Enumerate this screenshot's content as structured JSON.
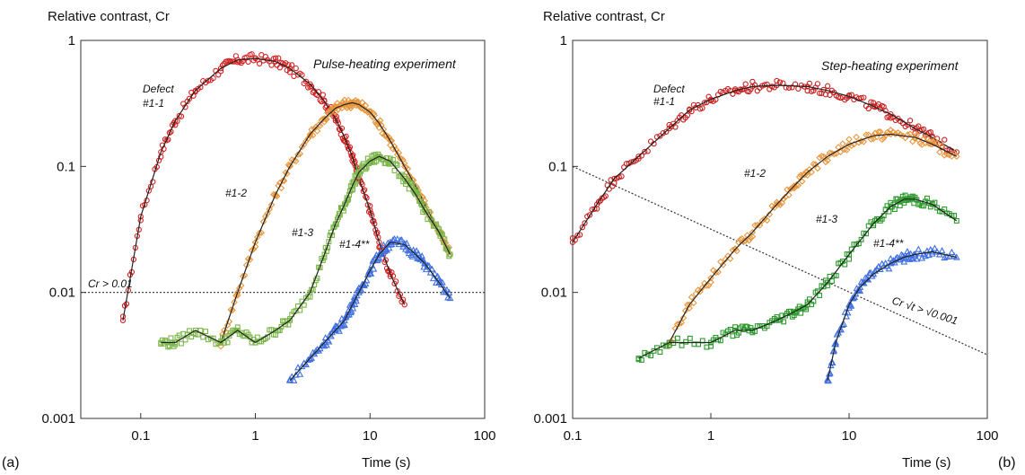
{
  "chart_data": [
    {
      "type": "scatter",
      "panel_label": "(a)",
      "title": "Pulse-heating experiment",
      "ylabel": "Relative contrast, Cr",
      "xlabel": "Time   (s)",
      "xscale": "log",
      "yscale": "log",
      "xlim": [
        0.03,
        100
      ],
      "ylim": [
        0.001,
        1
      ],
      "x_ticks": [
        "0.1",
        "1",
        "10",
        "100"
      ],
      "y_ticks": [
        "0.001",
        "0.01",
        "0.1",
        "1"
      ],
      "threshold": {
        "label": "Cr > 0.01",
        "value": 0.01
      },
      "series": [
        {
          "name": "Defect #1-1",
          "color": "#d42020",
          "marker": "circle",
          "x": [
            0.07,
            0.1,
            0.15,
            0.2,
            0.3,
            0.5,
            0.7,
            1,
            1.5,
            2,
            3,
            4,
            5,
            6,
            7,
            8,
            10,
            12,
            15,
            20
          ],
          "y": [
            0.006,
            0.04,
            0.13,
            0.23,
            0.4,
            0.6,
            0.7,
            0.72,
            0.68,
            0.6,
            0.45,
            0.33,
            0.24,
            0.17,
            0.12,
            0.08,
            0.045,
            0.025,
            0.014,
            0.008
          ]
        },
        {
          "name": "#1-2",
          "color": "#e8963c",
          "marker": "diamond",
          "x": [
            0.5,
            0.7,
            1,
            1.5,
            2,
            3,
            4,
            5,
            6,
            7,
            8,
            10,
            12,
            15,
            20,
            25,
            30,
            40,
            50
          ],
          "y": [
            0.004,
            0.01,
            0.025,
            0.06,
            0.1,
            0.18,
            0.24,
            0.29,
            0.31,
            0.32,
            0.31,
            0.27,
            0.22,
            0.16,
            0.1,
            0.07,
            0.05,
            0.03,
            0.02
          ]
        },
        {
          "name": "#1-3",
          "color": "#7ab648",
          "marker": "square",
          "x": [
            0.15,
            0.2,
            0.3,
            0.5,
            0.7,
            1,
            1.5,
            2,
            3,
            4,
            5,
            6,
            7,
            8,
            10,
            12,
            15,
            20,
            25,
            30,
            40,
            50
          ],
          "y": [
            0.004,
            0.004,
            0.005,
            0.004,
            0.005,
            0.004,
            0.005,
            0.006,
            0.01,
            0.02,
            0.035,
            0.05,
            0.07,
            0.09,
            0.11,
            0.12,
            0.11,
            0.08,
            0.06,
            0.045,
            0.03,
            0.02
          ]
        },
        {
          "name": "#1-4**",
          "color": "#3f6fe0",
          "marker": "triangle",
          "x": [
            2,
            3,
            4,
            5,
            6,
            7,
            8,
            10,
            12,
            15,
            20,
            25,
            30,
            40,
            50
          ],
          "y": [
            0.002,
            0.003,
            0.004,
            0.005,
            0.006,
            0.008,
            0.01,
            0.015,
            0.02,
            0.025,
            0.024,
            0.02,
            0.017,
            0.012,
            0.009
          ]
        }
      ]
    },
    {
      "type": "scatter",
      "panel_label": "(b)",
      "title": "Step-heating experiment",
      "ylabel": "Relative contrast, Cr",
      "xlabel": "Time   (s)",
      "xscale": "log",
      "yscale": "log",
      "xlim": [
        0.1,
        100
      ],
      "ylim": [
        0.001,
        1
      ],
      "x_ticks": [
        "0.1",
        "1",
        "10",
        "100"
      ],
      "y_ticks": [
        "0.001",
        "0.01",
        "0.1",
        "1"
      ],
      "threshold": {
        "label": "Cr √t > √0.001",
        "from": [
          0.1,
          0.1
        ],
        "to": [
          100,
          0.0032
        ]
      },
      "series": [
        {
          "name": "Defect #1-1",
          "color": "#c81e1e",
          "marker": "circle",
          "x": [
            0.1,
            0.15,
            0.2,
            0.3,
            0.5,
            0.7,
            1,
            1.5,
            2,
            3,
            5,
            7,
            10,
            15,
            20,
            30,
            40,
            60
          ],
          "y": [
            0.025,
            0.05,
            0.08,
            0.12,
            0.2,
            0.28,
            0.34,
            0.4,
            0.43,
            0.44,
            0.43,
            0.4,
            0.36,
            0.3,
            0.26,
            0.2,
            0.17,
            0.13
          ]
        },
        {
          "name": "#1-2",
          "color": "#e8963c",
          "marker": "diamond",
          "x": [
            0.5,
            0.7,
            1,
            1.5,
            2,
            3,
            4,
            5,
            7,
            10,
            15,
            20,
            30,
            40,
            60
          ],
          "y": [
            0.004,
            0.008,
            0.013,
            0.022,
            0.03,
            0.05,
            0.07,
            0.09,
            0.12,
            0.15,
            0.175,
            0.18,
            0.17,
            0.15,
            0.12
          ]
        },
        {
          "name": "#1-3",
          "color": "#2e9a2e",
          "marker": "square",
          "x": [
            0.3,
            0.5,
            1,
            1.5,
            2,
            3,
            4,
            5,
            7,
            10,
            15,
            20,
            25,
            30,
            40,
            60
          ],
          "y": [
            0.003,
            0.004,
            0.004,
            0.005,
            0.005,
            0.006,
            0.007,
            0.008,
            0.012,
            0.02,
            0.035,
            0.048,
            0.055,
            0.055,
            0.05,
            0.037
          ]
        },
        {
          "name": "#1-4**",
          "color": "#3f6fe0",
          "marker": "triangle",
          "x": [
            7,
            8,
            10,
            12,
            15,
            20,
            25,
            30,
            40,
            60
          ],
          "y": [
            0.002,
            0.004,
            0.008,
            0.011,
            0.014,
            0.017,
            0.019,
            0.02,
            0.021,
            0.019
          ]
        }
      ]
    }
  ]
}
